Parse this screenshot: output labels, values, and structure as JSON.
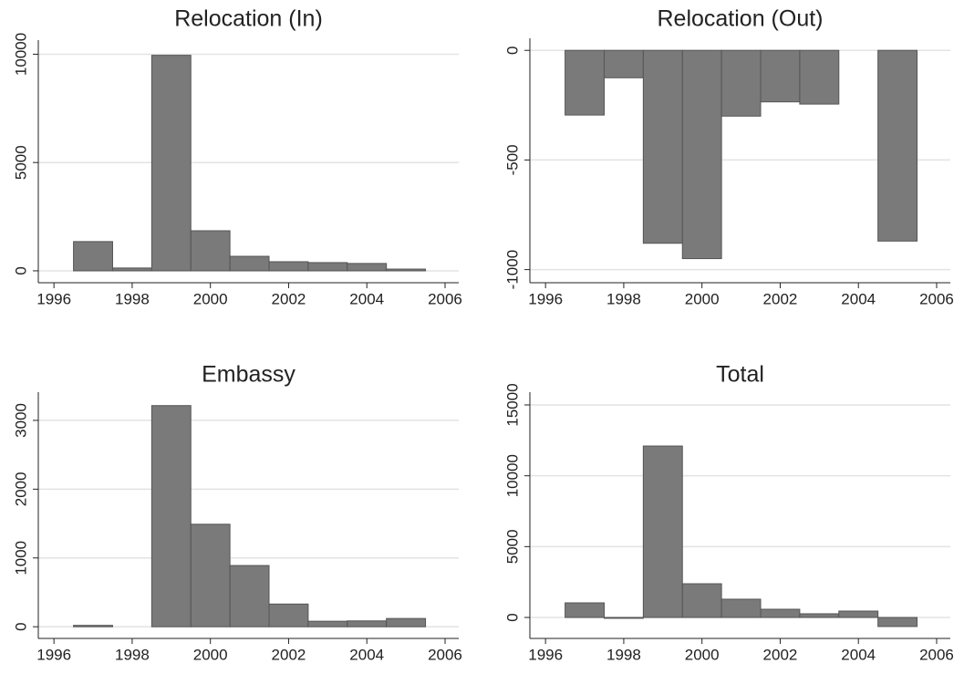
{
  "chart_data": [
    {
      "type": "bar",
      "title": "Relocation (In)",
      "x": [
        1997,
        1998,
        1999,
        2000,
        2001,
        2002,
        2003,
        2004,
        2005
      ],
      "values": [
        1350,
        130,
        9950,
        1850,
        670,
        420,
        380,
        340,
        80
      ],
      "color": "#7a7a7a",
      "xlim": [
        1995.6,
        2006.35
      ],
      "xticks": [
        1996,
        1998,
        2000,
        2002,
        2004,
        2006
      ],
      "ylim": [
        -550,
        10650
      ],
      "yticks": [
        0,
        5000,
        10000
      ],
      "grid": true
    },
    {
      "type": "bar",
      "title": "Relocation (Out)",
      "x": [
        1997,
        1998,
        1999,
        2000,
        2001,
        2002,
        2003,
        2004,
        2005
      ],
      "values": [
        -295,
        -125,
        -880,
        -950,
        -300,
        -235,
        -245,
        null,
        -870
      ],
      "color": "#7a7a7a",
      "xlim": [
        1995.6,
        2006.35
      ],
      "xticks": [
        1996,
        1998,
        2000,
        2002,
        2004,
        2006
      ],
      "ylim": [
        -1060,
        55
      ],
      "yticks": [
        -1000,
        -500,
        0
      ],
      "grid": true
    },
    {
      "type": "bar",
      "title": "Embassy",
      "x": [
        1997,
        1998,
        1999,
        2000,
        2001,
        2002,
        2003,
        2004,
        2005
      ],
      "values": [
        20,
        0,
        3215,
        1490,
        890,
        330,
        80,
        85,
        120
      ],
      "color": "#7a7a7a",
      "xlim": [
        1995.6,
        2006.35
      ],
      "xticks": [
        1996,
        1998,
        2000,
        2002,
        2004,
        2006
      ],
      "ylim": [
        -170,
        3410
      ],
      "yticks": [
        0,
        1000,
        2000,
        3000
      ],
      "grid": true
    },
    {
      "type": "bar",
      "title": "Total",
      "x": [
        1997,
        1998,
        1999,
        2000,
        2001,
        2002,
        2003,
        2004,
        2005
      ],
      "values": [
        1030,
        -60,
        12100,
        2380,
        1290,
        580,
        260,
        450,
        -640
      ],
      "color": "#7a7a7a",
      "xlim": [
        1995.6,
        2006.35
      ],
      "xticks": [
        1996,
        1998,
        2000,
        2002,
        2004,
        2006
      ],
      "ylim": [
        -1480,
        15900
      ],
      "yticks": [
        0,
        5000,
        10000,
        15000
      ],
      "grid": true
    }
  ]
}
